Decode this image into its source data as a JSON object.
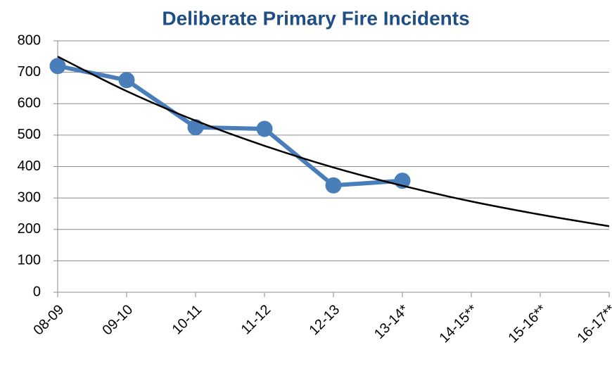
{
  "chart_data": {
    "type": "line",
    "title": "Deliberate Primary Fire Incidents",
    "categories": [
      "08-09",
      "09-10",
      "10-11",
      "11-12",
      "12-13",
      "13-14*",
      "14-15**",
      "15-16**",
      "16-17**"
    ],
    "series": [
      {
        "color": "#4a7ebb",
        "values": [
          720,
          675,
          525,
          520,
          340,
          355,
          null,
          null,
          null
        ]
      },
      {
        "color": "#000000",
        "values": [
          750,
          640,
          546,
          466,
          397,
          339,
          289,
          247,
          210
        ],
        "smooth": true
      }
    ],
    "ylim": [
      0,
      800
    ],
    "yticks": [
      0,
      100,
      200,
      300,
      400,
      500,
      600,
      700,
      800
    ],
    "grid": true
  }
}
